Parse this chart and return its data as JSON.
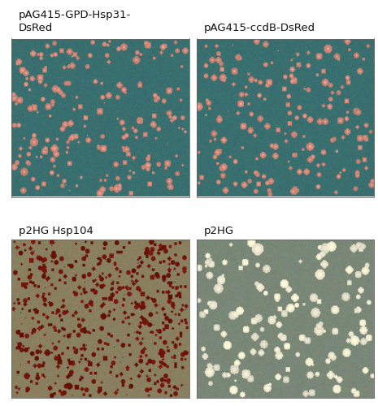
{
  "panels": [
    {
      "label": "pAG415-GPD-Hsp31-\nDsRed",
      "bg_color": "#3a7070",
      "colony_color": [
        200,
        130,
        115
      ],
      "colony_size_mean": 2.5,
      "colony_size_std": 0.8,
      "n_colonies": 220,
      "colony_style": "pink_red",
      "row": 0,
      "col": 0
    },
    {
      "label": "pAG415-ccdB-DsRed",
      "bg_color": "#3a7070",
      "colony_color": [
        200,
        130,
        115
      ],
      "colony_size_mean": 2.5,
      "colony_size_std": 0.8,
      "n_colonies": 190,
      "colony_style": "pink_red",
      "row": 0,
      "col": 1
    },
    {
      "label": "p2HG Hsp104",
      "bg_color": "#8a8060",
      "colony_color": [
        110,
        20,
        10
      ],
      "colony_size_mean": 1.8,
      "colony_size_std": 0.6,
      "n_colonies": 600,
      "colony_style": "dark_red",
      "row": 1,
      "col": 0
    },
    {
      "label": "p2HG",
      "bg_color": "#7a8878",
      "colony_color": [
        230,
        225,
        200
      ],
      "colony_size_mean": 3.5,
      "colony_size_std": 1.0,
      "n_colonies": 150,
      "colony_style": "white",
      "row": 1,
      "col": 1
    }
  ],
  "figure_bg": "#ffffff",
  "label_fontsize": 9.5,
  "label_color": "#111111"
}
